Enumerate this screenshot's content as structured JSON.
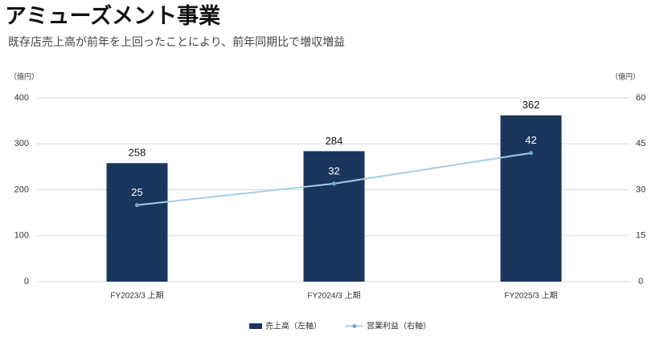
{
  "chart_data": {
    "type": "bar",
    "title": "アミューズメント事業",
    "subtitle": "既存店売上高が前年を上回ったことにより、前年同期比で増収増益",
    "ylabel": "（億円）",
    "y2label": "（億円）",
    "categories": [
      "FY2023/3 上期",
      "FY2024/3 上期",
      "FY2025/3 上期"
    ],
    "series": [
      {
        "name": "売上高（左軸）",
        "type": "bar",
        "color": "#1b365d",
        "values": [
          258,
          284,
          362
        ]
      },
      {
        "name": "営業利益（右軸）",
        "type": "line",
        "axis": "y2",
        "color": "#a8cde6",
        "values": [
          25,
          32,
          42
        ]
      }
    ],
    "ylim": [
      0,
      400
    ],
    "yticks": [
      0,
      100,
      200,
      300,
      400
    ],
    "y2lim": [
      0,
      60
    ],
    "y2ticks": [
      0,
      15,
      30,
      45,
      60
    ],
    "grid": true
  }
}
